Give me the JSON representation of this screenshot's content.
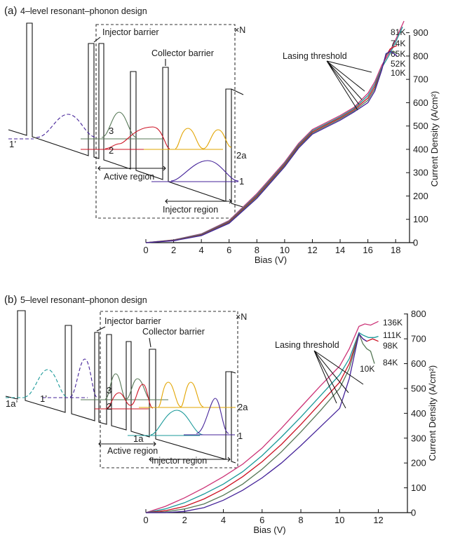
{
  "panels": [
    {
      "label": "(a)",
      "title": "4–level resonant–phonon design",
      "diagram": {
        "injector_barrier": "Injector barrier",
        "collector_barrier": "Collector barrier",
        "active_region": "Active region",
        "injector_region": "Injector region",
        "repeat": "×N",
        "levels": [
          "1’",
          "3",
          "2",
          "2a",
          "1"
        ]
      },
      "lasing_label": "Lasing threshold",
      "low_temp_label": "10K"
    },
    {
      "label": "(b)",
      "title": "5–level resonant–phonon design",
      "diagram": {
        "injector_barrier": "Injector barrier",
        "collector_barrier": "Collector barrier",
        "active_region": "Active region",
        "injector_region": "Injector region",
        "repeat": "×N",
        "levels": [
          "1a’",
          "1’",
          "3",
          "2",
          "1a",
          "2a",
          "1"
        ]
      },
      "lasing_label": "Lasing threshold",
      "low_temp_label": "10K"
    }
  ],
  "chart_data": [
    {
      "type": "line",
      "xlabel": "Bias (V)",
      "ylabel": "Current Density (A/cm²)",
      "xlim": [
        0,
        19
      ],
      "ylim": [
        0,
        950
      ],
      "xticks": [
        0,
        2,
        4,
        6,
        8,
        10,
        12,
        14,
        16,
        18
      ],
      "yticks": [
        0,
        100,
        200,
        300,
        400,
        500,
        600,
        700,
        800,
        900
      ],
      "series": [
        {
          "name": "81K",
          "color": "#cc3377",
          "x": [
            0,
            2,
            4,
            6,
            8,
            10,
            11,
            12,
            13,
            14,
            15,
            16,
            16.5,
            17,
            17.5,
            18,
            18.6
          ],
          "y": [
            0,
            12,
            38,
            95,
            210,
            345,
            425,
            485,
            515,
            545,
            580,
            640,
            690,
            760,
            810,
            870,
            950
          ]
        },
        {
          "name": "74K",
          "color": "#1a9999",
          "x": [
            0,
            2,
            4,
            6,
            8,
            10,
            11,
            12,
            13,
            14,
            15,
            16,
            16.5,
            17,
            17.5,
            18,
            18.5
          ],
          "y": [
            0,
            11,
            36,
            92,
            205,
            340,
            420,
            480,
            510,
            540,
            575,
            630,
            680,
            750,
            800,
            860,
            925
          ]
        },
        {
          "name": "65K",
          "color": "#cc1122",
          "x": [
            0,
            2,
            4,
            6,
            8,
            10,
            11,
            12,
            13,
            14,
            15,
            16,
            16.5,
            17,
            17.3,
            17.6,
            17.9,
            18.1
          ],
          "y": [
            0,
            10,
            34,
            89,
            200,
            335,
            415,
            475,
            505,
            535,
            570,
            620,
            670,
            745,
            800,
            830,
            840,
            845
          ]
        },
        {
          "name": "52K",
          "color": "#557755",
          "x": [
            0,
            2,
            4,
            6,
            8,
            10,
            11,
            12,
            13,
            14,
            15,
            16,
            16.5,
            17,
            17.3,
            17.6,
            17.9,
            18.1
          ],
          "y": [
            0,
            9,
            32,
            86,
            195,
            330,
            410,
            470,
            500,
            530,
            565,
            610,
            660,
            745,
            805,
            820,
            815,
            815
          ]
        },
        {
          "name": "10K",
          "color": "#442299",
          "x": [
            0,
            2,
            4,
            6,
            8,
            10,
            11,
            12,
            13,
            14,
            15,
            16,
            16.5,
            17,
            17.3,
            17.6,
            17.9,
            18.1
          ],
          "y": [
            0,
            8,
            30,
            83,
            190,
            325,
            405,
            465,
            495,
            525,
            560,
            600,
            650,
            740,
            810,
            820,
            810,
            800
          ]
        }
      ]
    },
    {
      "type": "line",
      "xlabel": "Bias (V)",
      "ylabel": "Current Density (A/cm²)",
      "xlim": [
        0,
        13.5
      ],
      "ylim": [
        0,
        850
      ],
      "xticks": [
        0,
        2,
        4,
        6,
        8,
        10,
        12
      ],
      "yticks": [
        0,
        100,
        200,
        300,
        400,
        500,
        600,
        700,
        800
      ],
      "series": [
        {
          "name": "136K",
          "color": "#cc3377",
          "x": [
            0,
            1,
            2,
            3,
            4,
            5,
            6,
            7,
            8,
            9,
            10,
            10.5,
            11,
            11.3,
            11.6,
            12
          ],
          "y": [
            0,
            25,
            60,
            100,
            145,
            195,
            260,
            340,
            425,
            510,
            590,
            660,
            750,
            760,
            755,
            770
          ]
        },
        {
          "name": "111K",
          "color": "#1a9999",
          "x": [
            0,
            1,
            2,
            3,
            4,
            5,
            6,
            7,
            8,
            9,
            10,
            10.5,
            11,
            11.2,
            11.5,
            11.8,
            12
          ],
          "y": [
            0,
            15,
            40,
            75,
            115,
            165,
            230,
            305,
            385,
            470,
            555,
            620,
            725,
            715,
            705,
            705,
            710
          ]
        },
        {
          "name": "98K",
          "color": "#cc1122",
          "x": [
            0,
            1,
            2,
            3,
            4,
            5,
            6,
            7,
            8,
            9,
            10,
            10.5,
            11,
            11.2,
            11.4,
            11.7,
            12
          ],
          "y": [
            0,
            8,
            25,
            55,
            95,
            145,
            205,
            275,
            355,
            440,
            525,
            600,
            720,
            700,
            690,
            700,
            690
          ]
        },
        {
          "name": "84K",
          "color": "#557755",
          "x": [
            0,
            1,
            2,
            3,
            4,
            5,
            6,
            7,
            8,
            9,
            10,
            10.5,
            11,
            11.2,
            11.4,
            11.6,
            11.8
          ],
          "y": [
            0,
            3,
            15,
            35,
            70,
            115,
            175,
            245,
            325,
            410,
            500,
            580,
            720,
            680,
            660,
            650,
            600
          ]
        },
        {
          "name": "10K",
          "color": "#442299",
          "x": [
            0,
            1,
            2,
            3,
            4,
            5,
            6,
            7,
            8,
            9,
            10,
            10.5,
            11,
            11.2,
            11.4
          ],
          "y": [
            0,
            0,
            5,
            20,
            50,
            90,
            140,
            200,
            270,
            345,
            420,
            540,
            720,
            700,
            690
          ]
        }
      ]
    }
  ]
}
